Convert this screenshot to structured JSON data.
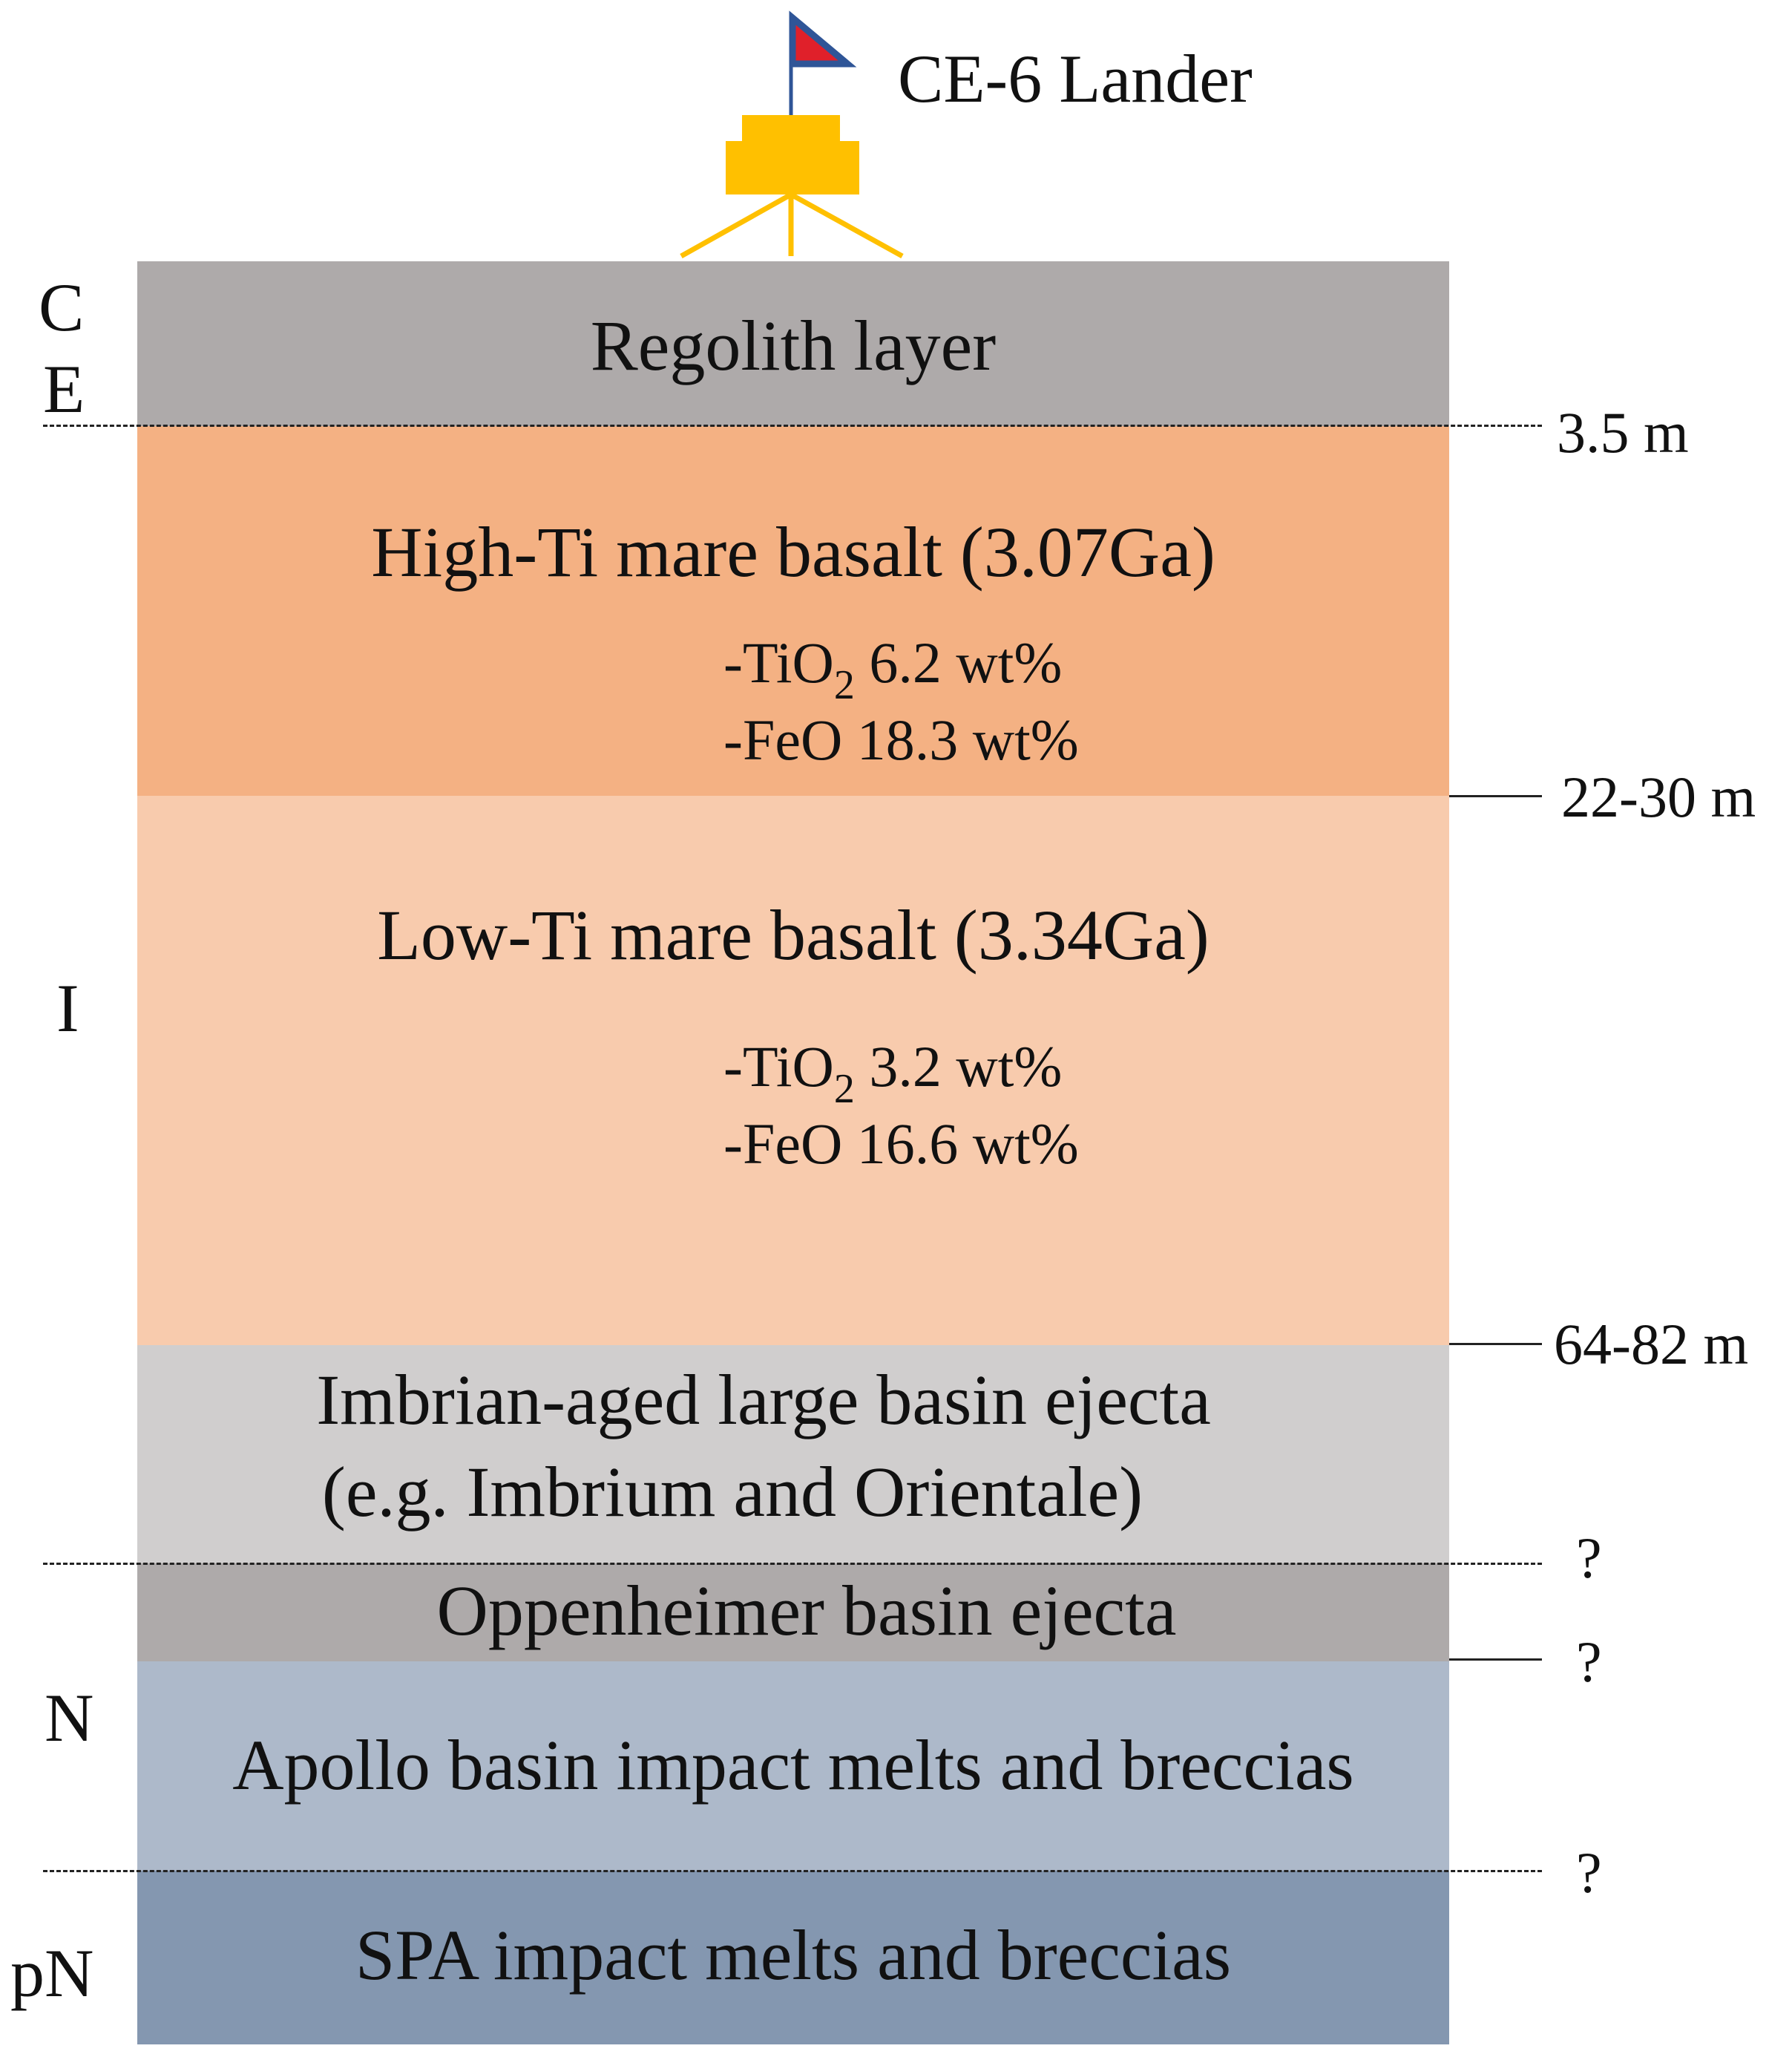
{
  "lander": {
    "label": "CE-6 Lander",
    "body_color": "#FFC000",
    "flag_color": "#E0202A",
    "flag_border_color": "#2F5597"
  },
  "eras": {
    "era_ce_line1": "C",
    "era_ce_line2": "E",
    "era_i": "I",
    "era_n": "N",
    "era_pn": "pN"
  },
  "layers": {
    "regolith": {
      "title": "Regolith layer",
      "color": "#AEAAAA"
    },
    "high_ti": {
      "title": "High-Ti mare basalt (3.07Ga)",
      "tio2_prefix": "-TiO",
      "tio2_sub": "2",
      "tio2_value": " 6.2 wt%",
      "feo": "-FeO 18.3 wt%",
      "color": "#F4B183"
    },
    "low_ti": {
      "title": "Low-Ti mare basalt (3.34Ga)",
      "tio2_prefix": "-TiO",
      "tio2_sub": "2",
      "tio2_value": " 3.2 wt%",
      "feo": "-FeO 16.6 wt%",
      "color": "#F8CBAD"
    },
    "imbrian": {
      "title_line1": "Imbrian-aged large basin ejecta",
      "title_line2": "(e.g. Imbrium and Orientale)",
      "color": "#D0CECE"
    },
    "oppenheimer": {
      "title": "Oppenheimer basin ejecta",
      "color": "#AEAAAA"
    },
    "apollo": {
      "title": "Apollo basin impact melts and breccias",
      "color": "#ADB9CA"
    },
    "spa": {
      "title": "SPA impact melts and breccias",
      "color": "#8497B0"
    }
  },
  "depths": {
    "regolith_base": "3.5 m",
    "high_ti_base": "22-30 m",
    "low_ti_base": "64-82 m",
    "imbrian_base": "?",
    "oppenheimer_base": "?",
    "apollo_base": "?"
  }
}
